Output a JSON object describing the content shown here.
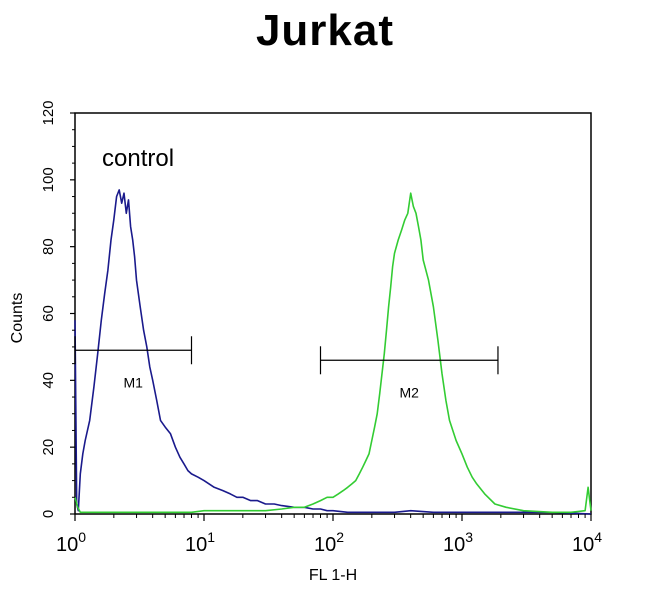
{
  "chart_data": {
    "type": "line",
    "title": "Jurkat",
    "xlabel": "FL 1-H",
    "ylabel": "Counts",
    "x_scale": "log",
    "xlim": [
      1,
      10000
    ],
    "ylim": [
      0,
      120
    ],
    "x_ticks": [
      {
        "value": 1,
        "base": "10",
        "exp": "0"
      },
      {
        "value": 10,
        "base": "10",
        "exp": "1"
      },
      {
        "value": 100,
        "base": "10",
        "exp": "2"
      },
      {
        "value": 1000,
        "base": "10",
        "exp": "3"
      },
      {
        "value": 10000,
        "base": "10",
        "exp": "4"
      }
    ],
    "y_ticks": [
      "0",
      "20",
      "40",
      "60",
      "80",
      "100",
      "120"
    ],
    "grid": false,
    "annotations": [
      {
        "text": "control"
      }
    ],
    "gates": [
      {
        "label": "M1",
        "x_start": 1,
        "x_end": 8,
        "y": 49
      },
      {
        "label": "M2",
        "x_start": 80,
        "x_end": 1900,
        "y": 46
      }
    ],
    "series": [
      {
        "color": "#1a1a8c",
        "x": [
          1,
          1.03,
          1.06,
          1.1,
          1.15,
          1.2,
          1.3,
          1.4,
          1.5,
          1.6,
          1.7,
          1.8,
          1.9,
          2.0,
          2.1,
          2.2,
          2.3,
          2.4,
          2.5,
          2.6,
          2.7,
          2.8,
          2.9,
          3.0,
          3.2,
          3.4,
          3.6,
          3.8,
          4.0,
          4.3,
          4.6,
          5.0,
          5.5,
          6.0,
          6.5,
          7.0,
          7.5,
          8.0,
          9.0,
          10,
          12,
          14,
          16,
          18,
          20,
          23,
          26,
          30,
          35,
          40,
          50,
          60,
          70,
          80,
          90,
          100,
          130,
          200,
          300,
          400,
          600,
          1000,
          2000,
          5000,
          10000
        ],
        "y": [
          58,
          3,
          1,
          12,
          18,
          22,
          28,
          38,
          48,
          58,
          66,
          73,
          82,
          88,
          95,
          97,
          93,
          96,
          90,
          94,
          86,
          82,
          77,
          70,
          62,
          55,
          50,
          44,
          40,
          34,
          28,
          26,
          24,
          20,
          17,
          15,
          13,
          12,
          11,
          10,
          8,
          7,
          6,
          5,
          5,
          4,
          4,
          3,
          3,
          2.5,
          2,
          2,
          1.5,
          1.5,
          1,
          1,
          0.5,
          0.5,
          0.5,
          1,
          0.5,
          0.5,
          0.5,
          0.5,
          0
        ]
      },
      {
        "color": "#33cc33",
        "x": [
          1,
          1.05,
          1.1,
          1.2,
          1.5,
          2,
          3,
          5,
          8,
          10,
          15,
          20,
          30,
          40,
          50,
          60,
          70,
          80,
          90,
          100,
          110,
          120,
          130,
          140,
          150,
          160,
          170,
          180,
          190,
          200,
          210,
          220,
          230,
          240,
          250,
          260,
          270,
          280,
          290,
          300,
          320,
          340,
          360,
          380,
          400,
          420,
          440,
          460,
          480,
          500,
          550,
          600,
          650,
          700,
          750,
          800,
          900,
          1000,
          1100,
          1200,
          1300,
          1500,
          1800,
          2200,
          3000,
          5000,
          7000,
          9000,
          9500,
          10000
        ],
        "y": [
          5,
          2,
          0.5,
          0.5,
          0.5,
          0.5,
          0.5,
          0.5,
          0.5,
          1,
          1,
          1,
          1,
          1.5,
          2,
          2,
          3,
          4,
          5,
          5,
          6,
          7,
          8,
          9,
          10,
          12,
          14,
          16,
          18,
          22,
          26,
          30,
          36,
          42,
          48,
          55,
          62,
          68,
          74,
          78,
          82,
          85,
          88,
          90,
          96,
          92,
          90,
          86,
          82,
          76,
          70,
          62,
          52,
          42,
          34,
          28,
          22,
          18,
          14,
          11,
          9,
          6,
          3,
          2,
          1,
          0.5,
          0.5,
          1,
          8,
          1
        ]
      }
    ]
  }
}
